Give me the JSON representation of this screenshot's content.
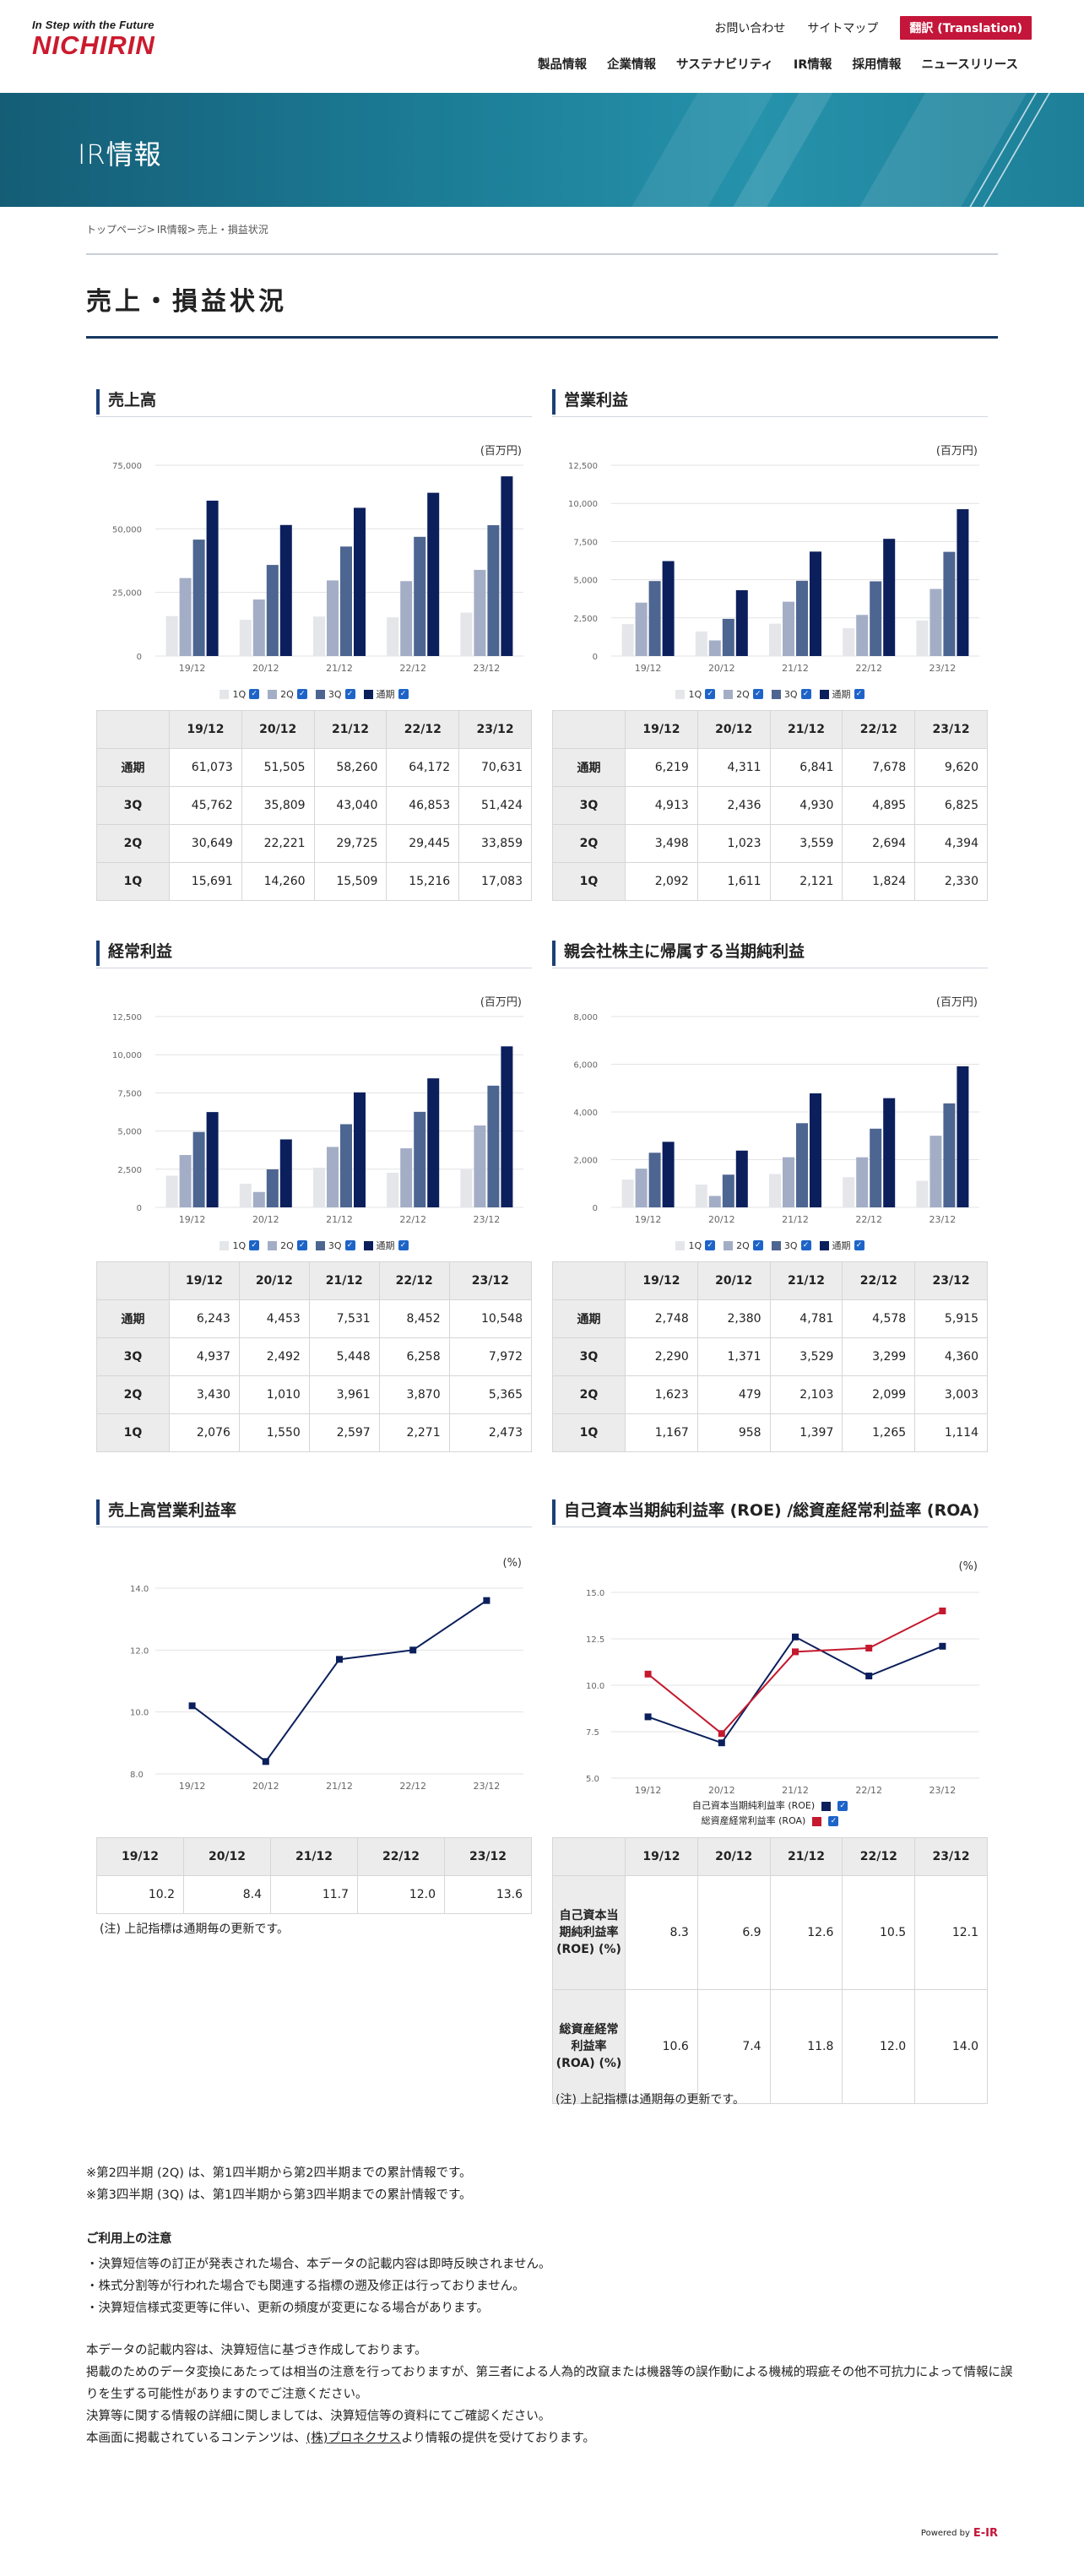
{
  "header": {
    "logo_tagline": "In Step with the Future",
    "logo_name": "NICHIRIN",
    "util_links": [
      "お問い合わせ",
      "サイトマップ"
    ],
    "translation_label": "翻訳 (Translation)",
    "nav": [
      "製品情報",
      "企業情報",
      "サステナビリティ",
      "IR情報",
      "採用情報",
      "ニュースリリース"
    ]
  },
  "banner": {
    "title": "IR情報"
  },
  "breadcrumb": [
    "トップページ",
    ">",
    "IR情報",
    ">",
    "売上・損益状況"
  ],
  "page_title": "売上・損益状況",
  "colors": {
    "q1": "#e4e6ea",
    "q2": "#a3aec6",
    "q3": "#4d6591",
    "full": "#0b1f5c",
    "roe": "#0b1f5c",
    "roa": "#c4192f",
    "accent": "#c4163a"
  },
  "legend_labels": [
    "1Q",
    "2Q",
    "3Q",
    "通期"
  ],
  "table_years": [
    "19/12",
    "20/12",
    "21/12",
    "22/12",
    "23/12"
  ],
  "table_row_labels": [
    "通期",
    "3Q",
    "2Q",
    "1Q"
  ],
  "charts": {
    "sales": {
      "title": "売上高",
      "unit": "(百万円)",
      "yticks": [
        "75,000",
        "50,000",
        "25,000",
        "0"
      ],
      "table": [
        [
          "61,073",
          "51,505",
          "58,260",
          "64,172",
          "70,631"
        ],
        [
          "45,762",
          "35,809",
          "43,040",
          "46,853",
          "51,424"
        ],
        [
          "30,649",
          "22,221",
          "29,725",
          "29,445",
          "33,859"
        ],
        [
          "15,691",
          "14,260",
          "15,509",
          "15,216",
          "17,083"
        ]
      ]
    },
    "op": {
      "title": "営業利益",
      "unit": "(百万円)",
      "yticks": [
        "12,500",
        "10,000",
        "7,500",
        "5,000",
        "2,500",
        "0"
      ],
      "table": [
        [
          "6,219",
          "4,311",
          "6,841",
          "7,678",
          "9,620"
        ],
        [
          "4,913",
          "2,436",
          "4,930",
          "4,895",
          "6,825"
        ],
        [
          "3,498",
          "1,023",
          "3,559",
          "2,694",
          "4,394"
        ],
        [
          "2,092",
          "1,611",
          "2,121",
          "1,824",
          "2,330"
        ]
      ]
    },
    "ord": {
      "title": "経常利益",
      "unit": "(百万円)",
      "yticks": [
        "12,500",
        "10,000",
        "7,500",
        "5,000",
        "2,500",
        "0"
      ],
      "table": [
        [
          "6,243",
          "4,453",
          "7,531",
          "8,452",
          "10,548"
        ],
        [
          "4,937",
          "2,492",
          "5,448",
          "6,258",
          "7,972"
        ],
        [
          "3,430",
          "1,010",
          "3,961",
          "3,870",
          "5,365"
        ],
        [
          "2,076",
          "1,550",
          "2,597",
          "2,271",
          "2,473"
        ]
      ]
    },
    "net": {
      "title": "親会社株主に帰属する当期純利益",
      "unit": "(百万円)",
      "yticks": [
        "8,000",
        "6,000",
        "4,000",
        "2,000",
        "0"
      ],
      "table": [
        [
          "2,748",
          "2,380",
          "4,781",
          "4,578",
          "5,915"
        ],
        [
          "2,290",
          "1,371",
          "3,529",
          "3,299",
          "4,360"
        ],
        [
          "1,623",
          "479",
          "2,103",
          "2,099",
          "3,003"
        ],
        [
          "1,167",
          "958",
          "1,397",
          "1,265",
          "1,114"
        ]
      ]
    },
    "margin": {
      "title": "売上高営業利益率",
      "unit": "(%)",
      "yticks": [
        "14.0",
        "12.0",
        "10.0",
        "8.0"
      ],
      "table": [
        "10.2",
        "8.4",
        "11.7",
        "12.0",
        "13.6"
      ],
      "note": "(注) 上記指標は通期毎の更新です。"
    },
    "roe": {
      "title": "自己資本当期純利益率 (ROE) /総資産経常利益率 (ROA)",
      "unit": "(%)",
      "yticks": [
        "15.0",
        "12.5",
        "10.0",
        "7.5",
        "5.0"
      ],
      "legend": [
        "自己資本当期純利益率 (ROE)",
        "総資産経常利益率 (ROA)"
      ],
      "row_labels": [
        "自己資本当期純利益率 (ROE) (%)",
        "総資産経常利益率 (ROA) (%)"
      ],
      "table": [
        [
          "8.3",
          "6.9",
          "12.6",
          "10.5",
          "12.1"
        ],
        [
          "10.6",
          "7.4",
          "11.8",
          "12.0",
          "14.0"
        ]
      ],
      "note": "(注) 上記指標は通期毎の更新です。"
    }
  },
  "chart_data": [
    {
      "type": "bar",
      "title": "売上高",
      "categories": [
        "19/12",
        "20/12",
        "21/12",
        "22/12",
        "23/12"
      ],
      "ylim": [
        0,
        75000
      ],
      "series": [
        {
          "name": "1Q",
          "values": [
            15691,
            14260,
            15509,
            15216,
            17083
          ]
        },
        {
          "name": "2Q",
          "values": [
            30649,
            22221,
            29725,
            29445,
            33859
          ]
        },
        {
          "name": "3Q",
          "values": [
            45762,
            35809,
            43040,
            46853,
            51424
          ]
        },
        {
          "name": "通期",
          "values": [
            61073,
            51505,
            58260,
            64172,
            70631
          ]
        }
      ]
    },
    {
      "type": "bar",
      "title": "営業利益",
      "categories": [
        "19/12",
        "20/12",
        "21/12",
        "22/12",
        "23/12"
      ],
      "ylim": [
        0,
        12500
      ],
      "series": [
        {
          "name": "1Q",
          "values": [
            2092,
            1611,
            2121,
            1824,
            2330
          ]
        },
        {
          "name": "2Q",
          "values": [
            3498,
            1023,
            3559,
            2694,
            4394
          ]
        },
        {
          "name": "3Q",
          "values": [
            4913,
            2436,
            4930,
            4895,
            6825
          ]
        },
        {
          "name": "通期",
          "values": [
            6219,
            4311,
            6841,
            7678,
            9620
          ]
        }
      ]
    },
    {
      "type": "bar",
      "title": "経常利益",
      "categories": [
        "19/12",
        "20/12",
        "21/12",
        "22/12",
        "23/12"
      ],
      "ylim": [
        0,
        12500
      ],
      "series": [
        {
          "name": "1Q",
          "values": [
            2076,
            1550,
            2597,
            2271,
            2473
          ]
        },
        {
          "name": "2Q",
          "values": [
            3430,
            1010,
            3961,
            3870,
            5365
          ]
        },
        {
          "name": "3Q",
          "values": [
            4937,
            2492,
            5448,
            6258,
            7972
          ]
        },
        {
          "name": "通期",
          "values": [
            6243,
            4453,
            7531,
            8452,
            10548
          ]
        }
      ]
    },
    {
      "type": "bar",
      "title": "親会社株主に帰属する当期純利益",
      "categories": [
        "19/12",
        "20/12",
        "21/12",
        "22/12",
        "23/12"
      ],
      "ylim": [
        0,
        8000
      ],
      "series": [
        {
          "name": "1Q",
          "values": [
            1167,
            958,
            1397,
            1265,
            1114
          ]
        },
        {
          "name": "2Q",
          "values": [
            1623,
            479,
            2103,
            2099,
            3003
          ]
        },
        {
          "name": "3Q",
          "values": [
            2290,
            1371,
            3529,
            3299,
            4360
          ]
        },
        {
          "name": "通期",
          "values": [
            2748,
            2380,
            4781,
            4578,
            5915
          ]
        }
      ]
    },
    {
      "type": "line",
      "title": "売上高営業利益率",
      "categories": [
        "19/12",
        "20/12",
        "21/12",
        "22/12",
        "23/12"
      ],
      "ylim": [
        8,
        14
      ],
      "series": [
        {
          "values": [
            10.2,
            8.4,
            11.7,
            12.0,
            13.6
          ]
        }
      ]
    },
    {
      "type": "line",
      "title": "自己資本当期純利益率 (ROE) /総資産経常利益率 (ROA)",
      "categories": [
        "19/12",
        "20/12",
        "21/12",
        "22/12",
        "23/12"
      ],
      "ylim": [
        5,
        15
      ],
      "series": [
        {
          "name": "自己資本当期純利益率 (ROE)",
          "values": [
            8.3,
            6.9,
            12.6,
            10.5,
            12.1
          ]
        },
        {
          "name": "総資産経常利益率 (ROA)",
          "values": [
            10.6,
            7.4,
            11.8,
            12.0,
            14.0
          ]
        }
      ]
    }
  ],
  "notes": {
    "cumulative": [
      "※第2四半期 (2Q) は、第1四半期から第2四半期までの累計情報です。",
      "※第3四半期 (3Q) は、第1四半期から第3四半期までの累計情報です。"
    ],
    "usage_title": "ご利用上の注意",
    "usage": [
      "・決算短信等の訂正が発表された場合、本データの記載内容は即時反映されません。",
      "・株式分割等が行われた場合でも関連する指標の遡及修正は行っておりません。",
      "・決算短信様式変更等に伴い、更新の頻度が変更になる場合があります。"
    ],
    "disclaimer": [
      "本データの記載内容は、決算短信に基づき作成しております。",
      "掲載のためのデータ変換にあたっては相当の注意を行っておりますが、第三者による人為的改竄または機器等の誤作動による機械的瑕疵その他不可抗力によって情報に誤りを生ずる可能性がありますのでご注意ください。",
      "決算等に関する情報の詳細に関しましては、決算短信等の資料にてご確認ください。"
    ],
    "provider_before": "本画面に掲載されているコンテンツは、",
    "provider_link": "(株)プロネクサス",
    "provider_after": "より情報の提供を受けております。"
  },
  "powered": {
    "label": "Powered by",
    "brand": "E-IR"
  }
}
